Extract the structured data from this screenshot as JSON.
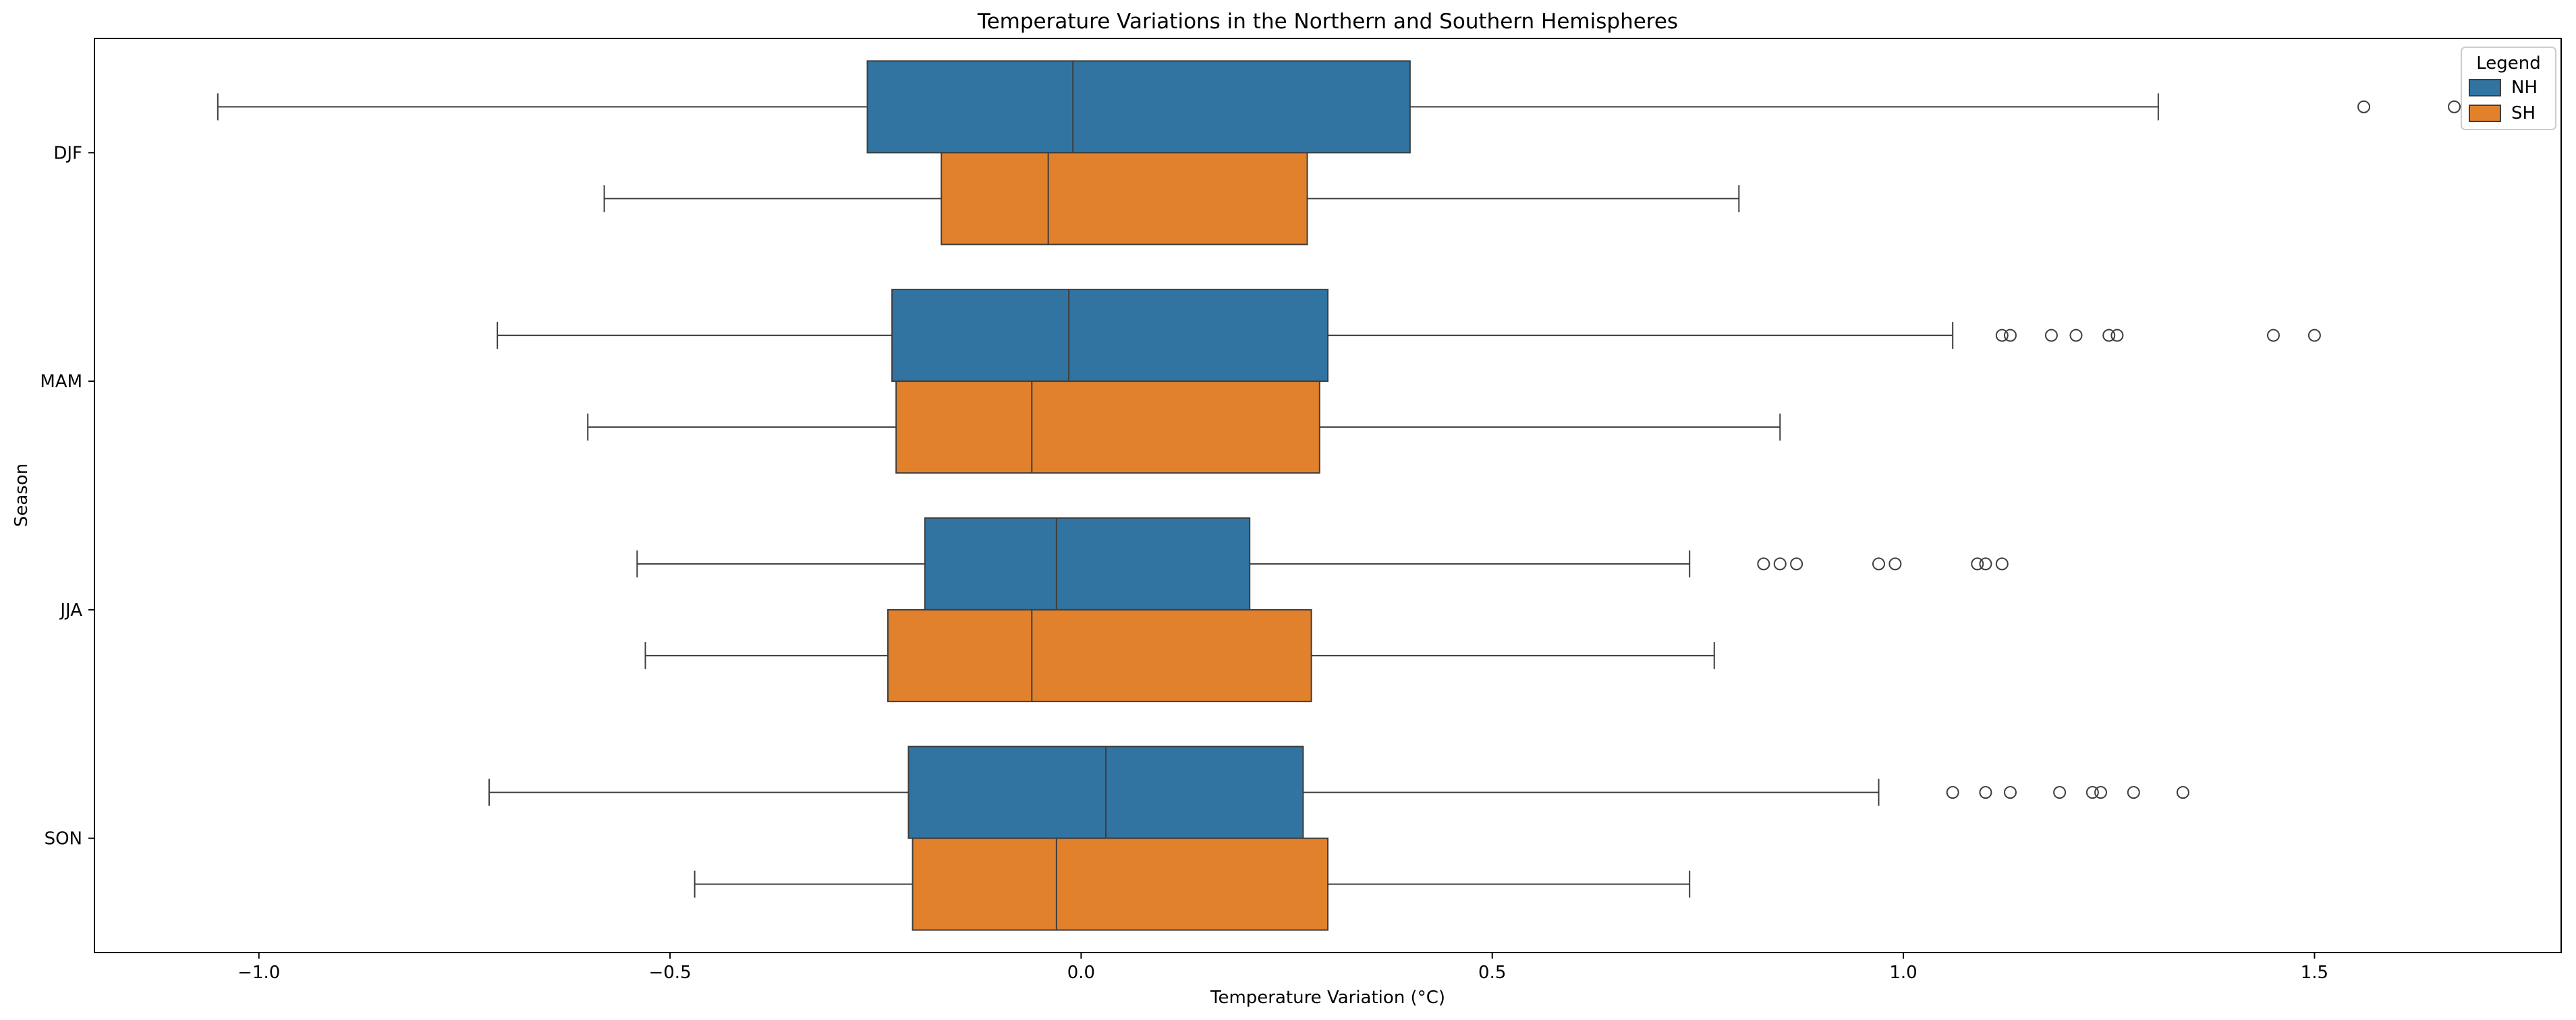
{
  "chart_data": {
    "type": "boxplot",
    "orientation": "horizontal",
    "title": "Temperature Variations in the Northern and Southern Hemispheres",
    "xlabel": "Temperature Variation (°C)",
    "ylabel": "Season",
    "xlim": [
      -1.2,
      1.8
    ],
    "xticks": [
      -1.0,
      -0.5,
      0.0,
      0.5,
      1.0,
      1.5
    ],
    "xtick_labels": [
      "−1.0",
      "−0.5",
      "0.0",
      "0.5",
      "1.0",
      "1.5"
    ],
    "categories": [
      "DJF",
      "MAM",
      "JJA",
      "SON"
    ],
    "grid": false,
    "legend": {
      "title": "Legend",
      "placement": "top-right"
    },
    "series": [
      {
        "name": "NH",
        "color": "#3274a1",
        "boxes": [
          {
            "whislo": -1.05,
            "q1": -0.26,
            "med": -0.01,
            "q3": 0.4,
            "whishi": 1.31,
            "fliers": [
              1.56,
              1.67
            ]
          },
          {
            "whislo": -0.71,
            "q1": -0.23,
            "med": -0.015,
            "q3": 0.3,
            "whishi": 1.06,
            "fliers": [
              1.12,
              1.13,
              1.18,
              1.21,
              1.25,
              1.26,
              1.45,
              1.5
            ]
          },
          {
            "whislo": -0.54,
            "q1": -0.19,
            "med": -0.03,
            "q3": 0.205,
            "whishi": 0.74,
            "fliers": [
              0.83,
              0.85,
              0.87,
              0.97,
              0.99,
              1.09,
              1.1,
              1.12
            ]
          },
          {
            "whislo": -0.72,
            "q1": -0.21,
            "med": 0.03,
            "q3": 0.27,
            "whishi": 0.97,
            "fliers": [
              1.06,
              1.1,
              1.13,
              1.19,
              1.23,
              1.24,
              1.28,
              1.34
            ]
          }
        ]
      },
      {
        "name": "SH",
        "color": "#e1812c",
        "boxes": [
          {
            "whislo": -0.58,
            "q1": -0.17,
            "med": -0.04,
            "q3": 0.275,
            "whishi": 0.8,
            "fliers": []
          },
          {
            "whislo": -0.6,
            "q1": -0.225,
            "med": -0.06,
            "q3": 0.29,
            "whishi": 0.85,
            "fliers": []
          },
          {
            "whislo": -0.53,
            "q1": -0.235,
            "med": -0.06,
            "q3": 0.28,
            "whishi": 0.77,
            "fliers": []
          },
          {
            "whislo": -0.47,
            "q1": -0.205,
            "med": -0.03,
            "q3": 0.3,
            "whishi": 0.74,
            "fliers": []
          }
        ]
      }
    ]
  }
}
